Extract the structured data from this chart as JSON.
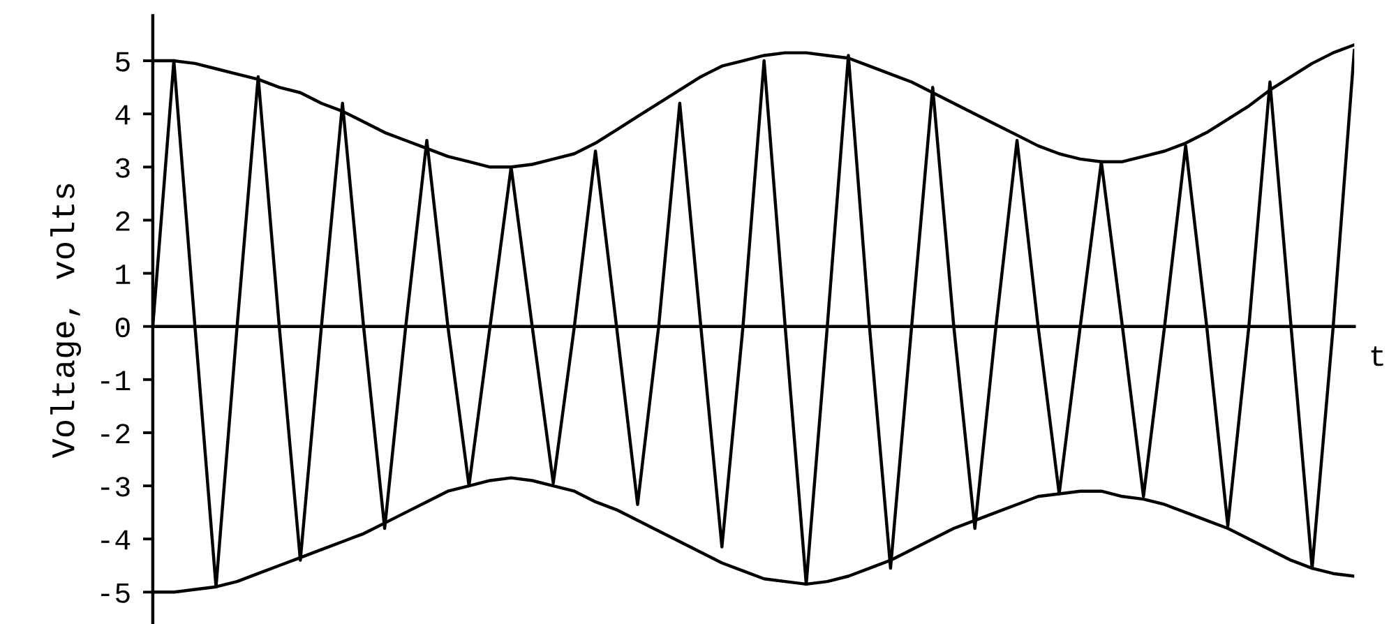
{
  "chart_data": {
    "type": "line",
    "xlabel": "t",
    "ylabel": "Voltage, volts",
    "categories": [
      null,
      null,
      null,
      null,
      null,
      null,
      null,
      null,
      null,
      null,
      null,
      null,
      null,
      null,
      null,
      null,
      null,
      null,
      null,
      null,
      null,
      null,
      null,
      null,
      null,
      null,
      null,
      null,
      null,
      null,
      null,
      null,
      null,
      null,
      null,
      null,
      null,
      null,
      null,
      null,
      null,
      null,
      null,
      null,
      null,
      null,
      null,
      null,
      null,
      null,
      null,
      null,
      null,
      null,
      null,
      null,
      null,
      null
    ],
    "series": [
      {
        "color": "#000000",
        "values": [
          0,
          5.0,
          0,
          -4.9,
          0,
          4.7,
          0,
          -4.4,
          0,
          4.2,
          0,
          -3.8,
          0,
          3.5,
          0,
          -3.0,
          0,
          3.0,
          0,
          -2.95,
          0,
          3.3,
          0,
          -3.35,
          0,
          4.2,
          0,
          -4.15,
          0,
          5.0,
          0,
          -4.85,
          0,
          5.1,
          0,
          -4.55,
          0,
          4.5,
          0,
          -3.8,
          0,
          3.5,
          0,
          -3.15,
          0,
          3.1,
          0,
          -3.2,
          0,
          3.4,
          0,
          -3.75,
          0,
          4.6,
          0,
          -4.55,
          0,
          5.2
        ]
      },
      {
        "color": "#000000",
        "values": [
          5.0,
          5.0,
          4.95,
          4.85,
          4.75,
          4.65,
          4.5,
          4.4,
          4.2,
          4.05,
          3.85,
          3.65,
          3.5,
          3.35,
          3.2,
          3.1,
          3.0,
          3.0,
          3.05,
          3.15,
          3.25,
          3.45,
          3.7,
          3.95,
          4.2,
          4.45,
          4.7,
          4.9,
          5.0,
          5.1,
          5.15,
          5.15,
          5.1,
          5.05,
          4.9,
          4.75,
          4.6,
          4.4,
          4.2,
          4.0,
          3.8,
          3.6,
          3.4,
          3.25,
          3.15,
          3.1,
          3.1,
          3.2,
          3.3,
          3.45,
          3.65,
          3.9,
          4.15,
          4.45,
          4.7,
          4.95,
          5.15,
          5.3
        ]
      },
      {
        "color": "#000000",
        "values": [
          -5.0,
          -5.0,
          -4.95,
          -4.9,
          -4.8,
          -4.65,
          -4.5,
          -4.35,
          -4.2,
          -4.05,
          -3.9,
          -3.7,
          -3.5,
          -3.3,
          -3.1,
          -3.0,
          -2.9,
          -2.85,
          -2.9,
          -3.0,
          -3.1,
          -3.3,
          -3.45,
          -3.65,
          -3.85,
          -4.05,
          -4.25,
          -4.45,
          -4.6,
          -4.75,
          -4.8,
          -4.85,
          -4.8,
          -4.7,
          -4.55,
          -4.4,
          -4.2,
          -4.0,
          -3.8,
          -3.65,
          -3.5,
          -3.35,
          -3.2,
          -3.15,
          -3.1,
          -3.1,
          -3.2,
          -3.25,
          -3.35,
          -3.5,
          -3.65,
          -3.8,
          -4.0,
          -4.2,
          -4.4,
          -4.55,
          -4.65,
          -4.7
        ]
      }
    ],
    "ylim": [
      -5.6,
      5.85
    ],
    "yticks": [
      -5,
      -4,
      -3,
      -2,
      -1,
      0,
      1,
      2,
      3,
      4,
      5
    ],
    "line_style": "solid",
    "marker": "none"
  }
}
